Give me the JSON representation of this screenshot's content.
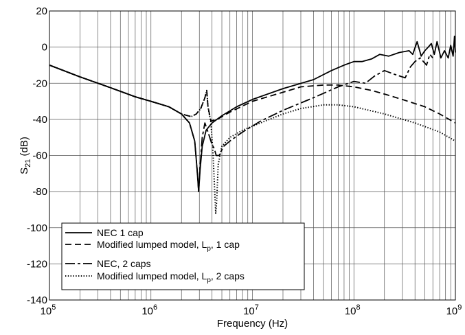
{
  "chart_data": {
    "type": "line",
    "title": "",
    "xlabel": "Frequency (Hz)",
    "ylabel": {
      "main": "S",
      "sub": "21",
      "unit": " (dB)"
    },
    "xscale": "log",
    "xlim": [
      100000,
      1000000000
    ],
    "ylim": [
      -140,
      20
    ],
    "grid": true,
    "legend_position": "bottom-left",
    "x_tick_labels": [
      {
        "value": 100000,
        "base": "10",
        "exp": "5"
      },
      {
        "value": 1000000,
        "base": "10",
        "exp": "6"
      },
      {
        "value": 10000000,
        "base": "10",
        "exp": "7"
      },
      {
        "value": 100000000,
        "base": "10",
        "exp": "8"
      },
      {
        "value": 1000000000,
        "base": "10",
        "exp": "9"
      }
    ],
    "y_ticks": [
      20,
      0,
      -20,
      -40,
      -60,
      -80,
      -100,
      -120,
      -140
    ],
    "series": [
      {
        "name": "NEC 1 cap",
        "style": "solid",
        "points": [
          [
            100000,
            -10
          ],
          [
            200000,
            -16.5
          ],
          [
            400000,
            -22.5
          ],
          [
            700000,
            -27.5
          ],
          [
            1000000,
            -30
          ],
          [
            1500000,
            -33
          ],
          [
            2000000,
            -37
          ],
          [
            2400000,
            -42
          ],
          [
            2700000,
            -52
          ],
          [
            2850000,
            -68
          ],
          [
            2950000,
            -80
          ],
          [
            3050000,
            -68
          ],
          [
            3200000,
            -55
          ],
          [
            3500000,
            -46
          ],
          [
            4000000,
            -42
          ],
          [
            5000000,
            -38
          ],
          [
            7000000,
            -33
          ],
          [
            10000000,
            -29
          ],
          [
            20000000,
            -23
          ],
          [
            40000000,
            -18
          ],
          [
            60000000,
            -13
          ],
          [
            80000000,
            -10
          ],
          [
            100000000,
            -8
          ],
          [
            120000000,
            -8
          ],
          [
            150000000,
            -6.5
          ],
          [
            180000000,
            -4
          ],
          [
            220000000,
            -5
          ],
          [
            280000000,
            -3
          ],
          [
            350000000,
            -2
          ],
          [
            380000000,
            -4
          ],
          [
            420000000,
            3
          ],
          [
            460000000,
            -5
          ],
          [
            500000000,
            -2
          ],
          [
            540000000,
            0
          ],
          [
            580000000,
            2
          ],
          [
            620000000,
            -4
          ],
          [
            660000000,
            3
          ],
          [
            720000000,
            -6
          ],
          [
            780000000,
            -2
          ],
          [
            850000000,
            -6
          ],
          [
            900000000,
            1
          ],
          [
            950000000,
            -5
          ],
          [
            980000000,
            6
          ],
          [
            1000000000,
            -3
          ]
        ]
      },
      {
        "name": "Modified lumped model, L<sub>p</sub>, 1 cap",
        "style": "dashed",
        "points": [
          [
            100000,
            -10
          ],
          [
            200000,
            -16.5
          ],
          [
            400000,
            -22.5
          ],
          [
            700000,
            -27.5
          ],
          [
            1000000,
            -30
          ],
          [
            1500000,
            -33
          ],
          [
            2000000,
            -37
          ],
          [
            2500000,
            -38.5
          ],
          [
            2800000,
            -37
          ],
          [
            3100000,
            -34
          ],
          [
            3400000,
            -28
          ],
          [
            3550000,
            -24
          ],
          [
            3650000,
            -33
          ],
          [
            3900000,
            -41
          ],
          [
            4500000,
            -40
          ],
          [
            6000000,
            -36
          ],
          [
            10000000,
            -30
          ],
          [
            20000000,
            -25
          ],
          [
            30000000,
            -22
          ],
          [
            50000000,
            -21
          ],
          [
            70000000,
            -21
          ],
          [
            100000000,
            -22
          ],
          [
            150000000,
            -24
          ],
          [
            200000000,
            -26
          ],
          [
            300000000,
            -29
          ],
          [
            500000000,
            -33
          ],
          [
            700000000,
            -37
          ],
          [
            1000000000,
            -42
          ]
        ]
      },
      {
        "name": "NEC, 2 caps",
        "style": "dashdot",
        "points": [
          [
            100000,
            -10
          ],
          [
            200000,
            -16.5
          ],
          [
            400000,
            -22.5
          ],
          [
            700000,
            -27.5
          ],
          [
            1000000,
            -30
          ],
          [
            1500000,
            -33
          ],
          [
            2000000,
            -37
          ],
          [
            2400000,
            -42
          ],
          [
            2700000,
            -52
          ],
          [
            2850000,
            -68
          ],
          [
            2950000,
            -80
          ],
          [
            3050000,
            -66
          ],
          [
            3200000,
            -50
          ],
          [
            3400000,
            -42
          ],
          [
            3600000,
            -46
          ],
          [
            3800000,
            -50
          ],
          [
            4000000,
            -54
          ],
          [
            4200000,
            -56
          ],
          [
            4400000,
            -60
          ],
          [
            4700000,
            -60
          ],
          [
            5200000,
            -55
          ],
          [
            6000000,
            -52
          ],
          [
            8000000,
            -47
          ],
          [
            12000000,
            -41
          ],
          [
            20000000,
            -35
          ],
          [
            40000000,
            -28
          ],
          [
            70000000,
            -22
          ],
          [
            100000000,
            -19
          ],
          [
            130000000,
            -20
          ],
          [
            160000000,
            -16
          ],
          [
            200000000,
            -13
          ],
          [
            250000000,
            -15
          ],
          [
            320000000,
            -17
          ],
          [
            360000000,
            -11
          ],
          [
            400000000,
            -8
          ],
          [
            450000000,
            -6
          ],
          [
            520000000,
            -10
          ],
          [
            560000000,
            -4
          ],
          [
            600000000,
            -6
          ]
        ]
      },
      {
        "name": "Modified lumped model, L<sub>p</sub>, 2 caps",
        "style": "dotted",
        "points": [
          [
            100000,
            -10
          ],
          [
            200000,
            -16.5
          ],
          [
            400000,
            -22.5
          ],
          [
            700000,
            -27.5
          ],
          [
            1000000,
            -30
          ],
          [
            1500000,
            -33
          ],
          [
            2000000,
            -37
          ],
          [
            2500000,
            -38.5
          ],
          [
            2800000,
            -37
          ],
          [
            3100000,
            -34
          ],
          [
            3400000,
            -28
          ],
          [
            3550000,
            -24
          ],
          [
            3650000,
            -33
          ],
          [
            3900000,
            -42
          ],
          [
            4100000,
            -60
          ],
          [
            4250000,
            -80
          ],
          [
            4350000,
            -92
          ],
          [
            4450000,
            -85
          ],
          [
            4600000,
            -65
          ],
          [
            5000000,
            -55
          ],
          [
            6000000,
            -50
          ],
          [
            8000000,
            -46
          ],
          [
            12000000,
            -42
          ],
          [
            20000000,
            -37
          ],
          [
            30000000,
            -34
          ],
          [
            50000000,
            -32
          ],
          [
            70000000,
            -32
          ],
          [
            100000000,
            -33
          ],
          [
            200000000,
            -37
          ],
          [
            400000000,
            -42
          ],
          [
            700000000,
            -47
          ],
          [
            1000000000,
            -52
          ]
        ]
      }
    ]
  }
}
